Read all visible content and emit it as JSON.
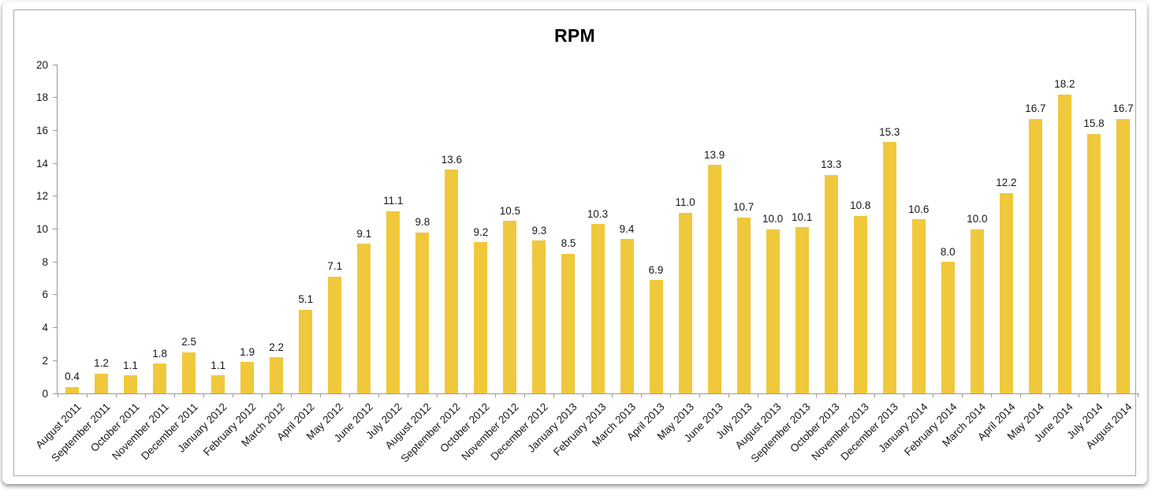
{
  "chart_data": {
    "type": "bar",
    "title": "RPM",
    "categories": [
      "August 2011",
      "September 2011",
      "October 2011",
      "November 2011",
      "December 2011",
      "January 2012",
      "February 2012",
      "March 2012",
      "April 2012",
      "May 2012",
      "June 2012",
      "July 2012",
      "August 2012",
      "September 2012",
      "October 2012",
      "November 2012",
      "December 2012",
      "January 2013",
      "February 2013",
      "March 2013",
      "April 2013",
      "May 2013",
      "June 2013",
      "July 2013",
      "August 2013",
      "September 2013",
      "October 2013",
      "November 2013",
      "December 2013",
      "January 2014",
      "February 2014",
      "March 2014",
      "April 2014",
      "May 2014",
      "June 2014",
      "July 2014",
      "August 2014"
    ],
    "values": [
      0.4,
      1.2,
      1.1,
      1.8,
      2.5,
      1.1,
      1.9,
      2.2,
      5.1,
      7.1,
      9.1,
      11.1,
      9.8,
      13.6,
      9.2,
      10.5,
      9.3,
      8.5,
      10.3,
      9.4,
      6.9,
      11.0,
      13.9,
      10.7,
      10.0,
      10.1,
      13.3,
      10.8,
      15.3,
      10.6,
      8.0,
      10.0,
      12.2,
      16.7,
      18.2,
      15.8,
      16.7
    ],
    "value_labels": [
      "0.4",
      "1.2",
      "1.1",
      "1.8",
      "2.5",
      "1.1",
      "1.9",
      "2.2",
      "5.1",
      "7.1",
      "9.1",
      "11.1",
      "9.8",
      "13.6",
      "9.2",
      "10.5",
      "9.3",
      "8.5",
      "10.3",
      "9.4",
      "6.9",
      "11.0",
      "13.9",
      "10.7",
      "10.0",
      "10.1",
      "13.3",
      "10.8",
      "15.3",
      "10.6",
      "8.0",
      "10.0",
      "12.2",
      "16.7",
      "18.2",
      "15.8",
      "16.7"
    ],
    "yticks": [
      0,
      2,
      4,
      6,
      8,
      10,
      12,
      14,
      16,
      18,
      20
    ],
    "ylim": [
      0,
      20
    ],
    "xlabel": "",
    "ylabel": "",
    "grid": false,
    "legend": null,
    "bar_color": "#F0C83C",
    "axis_color": "#999999",
    "label_color": "#191919",
    "title_color": "#000000"
  }
}
